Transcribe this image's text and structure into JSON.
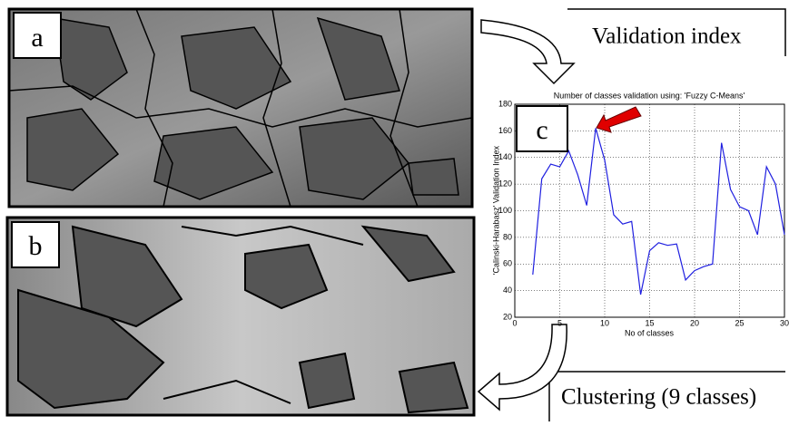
{
  "panels": {
    "a": "a",
    "b": "b",
    "c": "c"
  },
  "captions": {
    "top": "Validation index",
    "bottom": "Clustering (9 classes)"
  },
  "chart_data": {
    "type": "line",
    "title": "Number of classes validation using: 'Fuzzy C-Means'",
    "xlabel": "No of classes",
    "ylabel": "'Calinski-Harabasz' Validation Index",
    "x": [
      2,
      3,
      4,
      5,
      6,
      7,
      8,
      9,
      10,
      11,
      12,
      13,
      14,
      15,
      16,
      17,
      18,
      19,
      20,
      21,
      22,
      23,
      24,
      25,
      26,
      27,
      28,
      29,
      30
    ],
    "values": [
      52,
      124,
      135,
      133,
      145,
      127,
      104,
      162,
      138,
      97,
      90,
      92,
      37,
      70,
      76,
      74,
      75,
      48,
      55,
      58,
      60,
      151,
      116,
      103,
      100,
      82,
      133,
      120,
      82
    ],
    "color": "#2020e0",
    "xlim": [
      0,
      30
    ],
    "xticks": [
      0,
      5,
      10,
      15,
      20,
      25,
      30
    ],
    "ylim": [
      20,
      180
    ],
    "yticks": [
      20,
      40,
      60,
      80,
      100,
      120,
      140,
      160,
      180
    ],
    "grid": true
  }
}
